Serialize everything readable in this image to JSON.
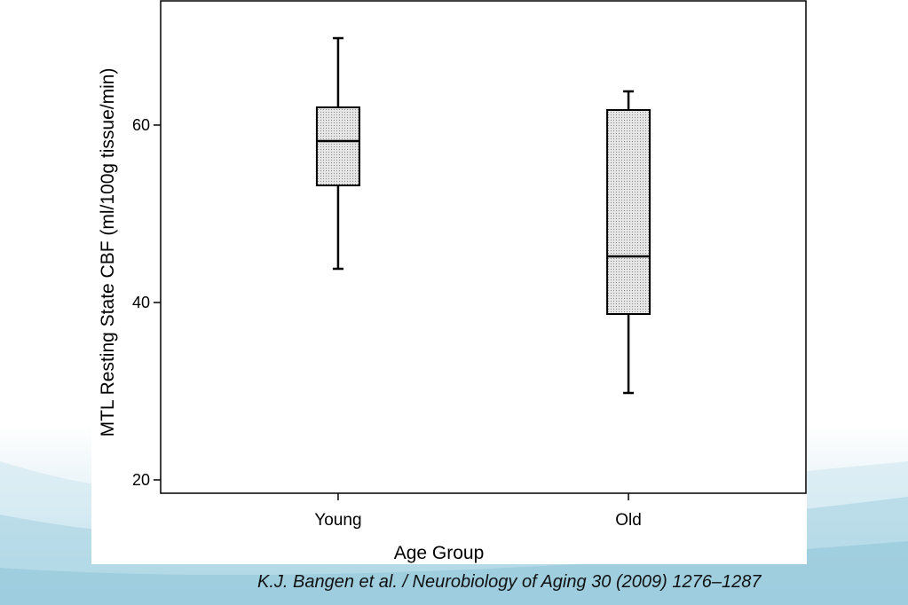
{
  "chart_data": {
    "type": "box",
    "xlabel": "Age Group",
    "ylabel": "MTL Resting State CBF (ml/100g tissue/min)",
    "categories": [
      "Young",
      "Old"
    ],
    "yticks": [
      20,
      40,
      60
    ],
    "ylim": [
      18.5,
      74
    ],
    "boxes": [
      {
        "category": "Young",
        "whisker_low": 43.8,
        "q1": 53.2,
        "median": 58.2,
        "q3": 62.0,
        "whisker_high": 69.8
      },
      {
        "category": "Old",
        "whisker_low": 29.8,
        "q1": 38.7,
        "median": 45.2,
        "q3": 61.7,
        "whisker_high": 63.8
      }
    ],
    "grid": false,
    "box_fill": "#d6d6d6"
  },
  "caption": "K.J. Bangen et al. / Neurobiology of Aging 30 (2009) 1276–1287",
  "colors": {
    "axis": "#000000",
    "background_gradient": "#9fcddf"
  }
}
